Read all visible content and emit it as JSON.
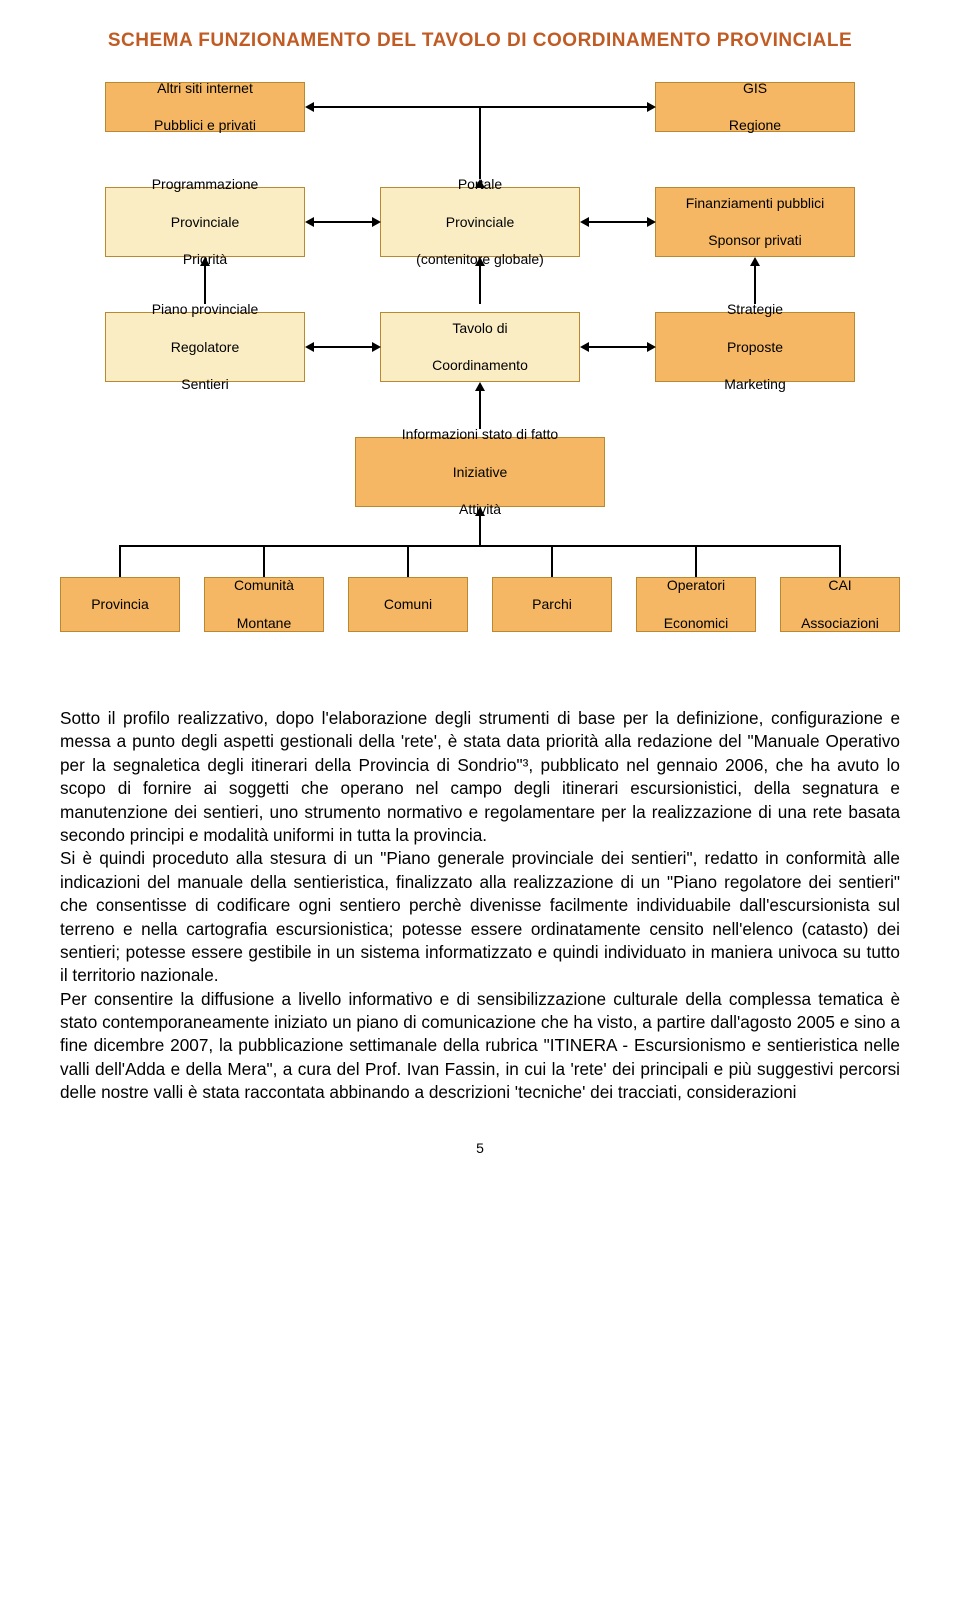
{
  "title": "SCHEMA FUNZIONAMENTO DEL TAVOLO DI COORDINAMENTO PROVINCIALE",
  "diagram": {
    "colors": {
      "orange_fill": "#f5b763",
      "cream_fill": "#faedc4",
      "border": "#b8892f",
      "title": "#c15b24",
      "connector": "#000000",
      "background": "#ffffff"
    },
    "font_size_box": 14,
    "boxes": {
      "r1a": {
        "lines": [
          "Altri siti internet",
          "Pubblici e privati"
        ],
        "style": "orange"
      },
      "r1b": {
        "lines": [
          "GIS",
          "Regione"
        ],
        "style": "orange"
      },
      "r2a": {
        "lines": [
          "Programmazione",
          "Provinciale",
          "Priorità"
        ],
        "style": "cream"
      },
      "r2b": {
        "lines": [
          "Portale",
          "Provinciale",
          "(contenitore globale)"
        ],
        "style": "cream"
      },
      "r2c": {
        "lines": [
          "Finanziamenti pubblici",
          "Sponsor privati"
        ],
        "style": "orange"
      },
      "r3a": {
        "lines": [
          "Piano provinciale",
          "Regolatore",
          "Sentieri"
        ],
        "style": "cream"
      },
      "r3b": {
        "lines": [
          "Tavolo di",
          "Coordinamento"
        ],
        "style": "cream"
      },
      "r3c": {
        "lines": [
          "Strategie",
          "Proposte",
          "Marketing"
        ],
        "style": "orange"
      },
      "r4": {
        "lines": [
          "Informazioni stato di fatto",
          "Iniziative",
          "Attività"
        ],
        "style": "orange"
      },
      "r5a": {
        "lines": [
          "Provincia"
        ],
        "style": "orange"
      },
      "r5b": {
        "lines": [
          "Comunità",
          "Montane"
        ],
        "style": "orange"
      },
      "r5c": {
        "lines": [
          "Comuni"
        ],
        "style": "orange"
      },
      "r5d": {
        "lines": [
          "Parchi"
        ],
        "style": "orange"
      },
      "r5e": {
        "lines": [
          "Operatori",
          "Economici"
        ],
        "style": "orange"
      },
      "r5f": {
        "lines": [
          "CAI",
          "Associazioni"
        ],
        "style": "orange"
      }
    }
  },
  "body": {
    "p1": "Sotto il profilo realizzativo, dopo l'elaborazione degli strumenti di base per la definizione, configurazione e messa a punto degli aspetti gestionali della 'rete', è stata data priorità alla redazione del \"Manuale Operativo per la segnaletica degli itinerari della Provincia di Sondrio\"³, pubblicato nel gennaio 2006, che ha avuto lo scopo di fornire ai soggetti che operano nel campo degli itinerari escursionistici, della segnatura e manutenzione dei sentieri, uno strumento normativo e regolamentare per la realizzazione di una rete basata secondo principi e modalità uniformi in tutta la provincia.",
    "p2": "Si è quindi proceduto alla stesura di un \"Piano generale provinciale dei sentieri\", redatto in conformità alle indicazioni del manuale della sentieristica, finalizzato alla realizzazione di un \"Piano regolatore dei sentieri\" che consentisse di codificare ogni sentiero perchè divenisse facilmente individuabile dall'escursionista sul terreno e nella cartografia escursionistica; potesse essere ordinatamente censito nell'elenco (catasto) dei sentieri; potesse essere gestibile in un sistema informatizzato e quindi individuato in maniera univoca su tutto il territorio nazionale.",
    "p3": "Per consentire la diffusione a livello informativo e di sensibilizzazione culturale della complessa tematica è stato contemporaneamente iniziato un piano di comunicazione che ha visto, a partire dall'agosto 2005 e sino a fine dicembre 2007, la pubblicazione settimanale della rubrica \"ITINERA - Escursionismo e sentieristica nelle valli dell'Adda e della Mera\", a cura del Prof. Ivan Fassin, in cui la 'rete' dei principali e più suggestivi percorsi delle nostre valli è stata raccontata abbinando a descrizioni 'tecniche' dei tracciati, considerazioni"
  },
  "pagenum": "5"
}
